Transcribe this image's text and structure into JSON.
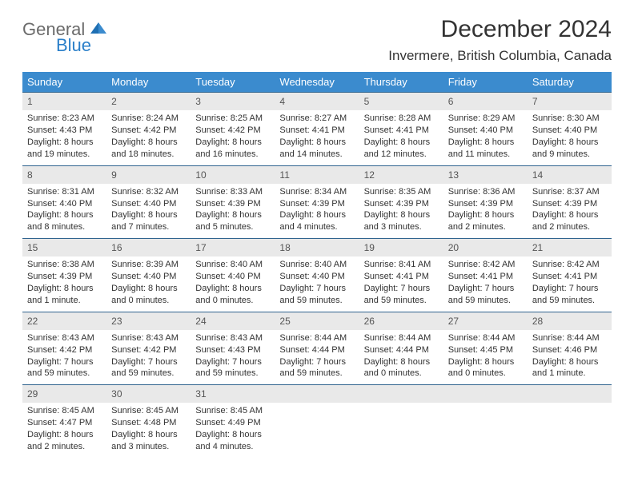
{
  "logo": {
    "general": "General",
    "blue": "Blue"
  },
  "header": {
    "title": "December 2024",
    "location": "Invermere, British Columbia, Canada"
  },
  "colors": {
    "dow_bg": "#3b8bce",
    "dow_fg": "#ffffff",
    "week_border": "#30648f",
    "daynum_bg": "#e9e9e9",
    "text": "#333333"
  },
  "days_of_week": [
    "Sunday",
    "Monday",
    "Tuesday",
    "Wednesday",
    "Thursday",
    "Friday",
    "Saturday"
  ],
  "weeks": [
    [
      {
        "n": "1",
        "sunrise": "Sunrise: 8:23 AM",
        "sunset": "Sunset: 4:43 PM",
        "day1": "Daylight: 8 hours",
        "day2": "and 19 minutes."
      },
      {
        "n": "2",
        "sunrise": "Sunrise: 8:24 AM",
        "sunset": "Sunset: 4:42 PM",
        "day1": "Daylight: 8 hours",
        "day2": "and 18 minutes."
      },
      {
        "n": "3",
        "sunrise": "Sunrise: 8:25 AM",
        "sunset": "Sunset: 4:42 PM",
        "day1": "Daylight: 8 hours",
        "day2": "and 16 minutes."
      },
      {
        "n": "4",
        "sunrise": "Sunrise: 8:27 AM",
        "sunset": "Sunset: 4:41 PM",
        "day1": "Daylight: 8 hours",
        "day2": "and 14 minutes."
      },
      {
        "n": "5",
        "sunrise": "Sunrise: 8:28 AM",
        "sunset": "Sunset: 4:41 PM",
        "day1": "Daylight: 8 hours",
        "day2": "and 12 minutes."
      },
      {
        "n": "6",
        "sunrise": "Sunrise: 8:29 AM",
        "sunset": "Sunset: 4:40 PM",
        "day1": "Daylight: 8 hours",
        "day2": "and 11 minutes."
      },
      {
        "n": "7",
        "sunrise": "Sunrise: 8:30 AM",
        "sunset": "Sunset: 4:40 PM",
        "day1": "Daylight: 8 hours",
        "day2": "and 9 minutes."
      }
    ],
    [
      {
        "n": "8",
        "sunrise": "Sunrise: 8:31 AM",
        "sunset": "Sunset: 4:40 PM",
        "day1": "Daylight: 8 hours",
        "day2": "and 8 minutes."
      },
      {
        "n": "9",
        "sunrise": "Sunrise: 8:32 AM",
        "sunset": "Sunset: 4:40 PM",
        "day1": "Daylight: 8 hours",
        "day2": "and 7 minutes."
      },
      {
        "n": "10",
        "sunrise": "Sunrise: 8:33 AM",
        "sunset": "Sunset: 4:39 PM",
        "day1": "Daylight: 8 hours",
        "day2": "and 5 minutes."
      },
      {
        "n": "11",
        "sunrise": "Sunrise: 8:34 AM",
        "sunset": "Sunset: 4:39 PM",
        "day1": "Daylight: 8 hours",
        "day2": "and 4 minutes."
      },
      {
        "n": "12",
        "sunrise": "Sunrise: 8:35 AM",
        "sunset": "Sunset: 4:39 PM",
        "day1": "Daylight: 8 hours",
        "day2": "and 3 minutes."
      },
      {
        "n": "13",
        "sunrise": "Sunrise: 8:36 AM",
        "sunset": "Sunset: 4:39 PM",
        "day1": "Daylight: 8 hours",
        "day2": "and 2 minutes."
      },
      {
        "n": "14",
        "sunrise": "Sunrise: 8:37 AM",
        "sunset": "Sunset: 4:39 PM",
        "day1": "Daylight: 8 hours",
        "day2": "and 2 minutes."
      }
    ],
    [
      {
        "n": "15",
        "sunrise": "Sunrise: 8:38 AM",
        "sunset": "Sunset: 4:39 PM",
        "day1": "Daylight: 8 hours",
        "day2": "and 1 minute."
      },
      {
        "n": "16",
        "sunrise": "Sunrise: 8:39 AM",
        "sunset": "Sunset: 4:40 PM",
        "day1": "Daylight: 8 hours",
        "day2": "and 0 minutes."
      },
      {
        "n": "17",
        "sunrise": "Sunrise: 8:40 AM",
        "sunset": "Sunset: 4:40 PM",
        "day1": "Daylight: 8 hours",
        "day2": "and 0 minutes."
      },
      {
        "n": "18",
        "sunrise": "Sunrise: 8:40 AM",
        "sunset": "Sunset: 4:40 PM",
        "day1": "Daylight: 7 hours",
        "day2": "and 59 minutes."
      },
      {
        "n": "19",
        "sunrise": "Sunrise: 8:41 AM",
        "sunset": "Sunset: 4:41 PM",
        "day1": "Daylight: 7 hours",
        "day2": "and 59 minutes."
      },
      {
        "n": "20",
        "sunrise": "Sunrise: 8:42 AM",
        "sunset": "Sunset: 4:41 PM",
        "day1": "Daylight: 7 hours",
        "day2": "and 59 minutes."
      },
      {
        "n": "21",
        "sunrise": "Sunrise: 8:42 AM",
        "sunset": "Sunset: 4:41 PM",
        "day1": "Daylight: 7 hours",
        "day2": "and 59 minutes."
      }
    ],
    [
      {
        "n": "22",
        "sunrise": "Sunrise: 8:43 AM",
        "sunset": "Sunset: 4:42 PM",
        "day1": "Daylight: 7 hours",
        "day2": "and 59 minutes."
      },
      {
        "n": "23",
        "sunrise": "Sunrise: 8:43 AM",
        "sunset": "Sunset: 4:42 PM",
        "day1": "Daylight: 7 hours",
        "day2": "and 59 minutes."
      },
      {
        "n": "24",
        "sunrise": "Sunrise: 8:43 AM",
        "sunset": "Sunset: 4:43 PM",
        "day1": "Daylight: 7 hours",
        "day2": "and 59 minutes."
      },
      {
        "n": "25",
        "sunrise": "Sunrise: 8:44 AM",
        "sunset": "Sunset: 4:44 PM",
        "day1": "Daylight: 7 hours",
        "day2": "and 59 minutes."
      },
      {
        "n": "26",
        "sunrise": "Sunrise: 8:44 AM",
        "sunset": "Sunset: 4:44 PM",
        "day1": "Daylight: 8 hours",
        "day2": "and 0 minutes."
      },
      {
        "n": "27",
        "sunrise": "Sunrise: 8:44 AM",
        "sunset": "Sunset: 4:45 PM",
        "day1": "Daylight: 8 hours",
        "day2": "and 0 minutes."
      },
      {
        "n": "28",
        "sunrise": "Sunrise: 8:44 AM",
        "sunset": "Sunset: 4:46 PM",
        "day1": "Daylight: 8 hours",
        "day2": "and 1 minute."
      }
    ],
    [
      {
        "n": "29",
        "sunrise": "Sunrise: 8:45 AM",
        "sunset": "Sunset: 4:47 PM",
        "day1": "Daylight: 8 hours",
        "day2": "and 2 minutes."
      },
      {
        "n": "30",
        "sunrise": "Sunrise: 8:45 AM",
        "sunset": "Sunset: 4:48 PM",
        "day1": "Daylight: 8 hours",
        "day2": "and 3 minutes."
      },
      {
        "n": "31",
        "sunrise": "Sunrise: 8:45 AM",
        "sunset": "Sunset: 4:49 PM",
        "day1": "Daylight: 8 hours",
        "day2": "and 4 minutes."
      },
      {
        "empty": true
      },
      {
        "empty": true
      },
      {
        "empty": true
      },
      {
        "empty": true
      }
    ]
  ]
}
